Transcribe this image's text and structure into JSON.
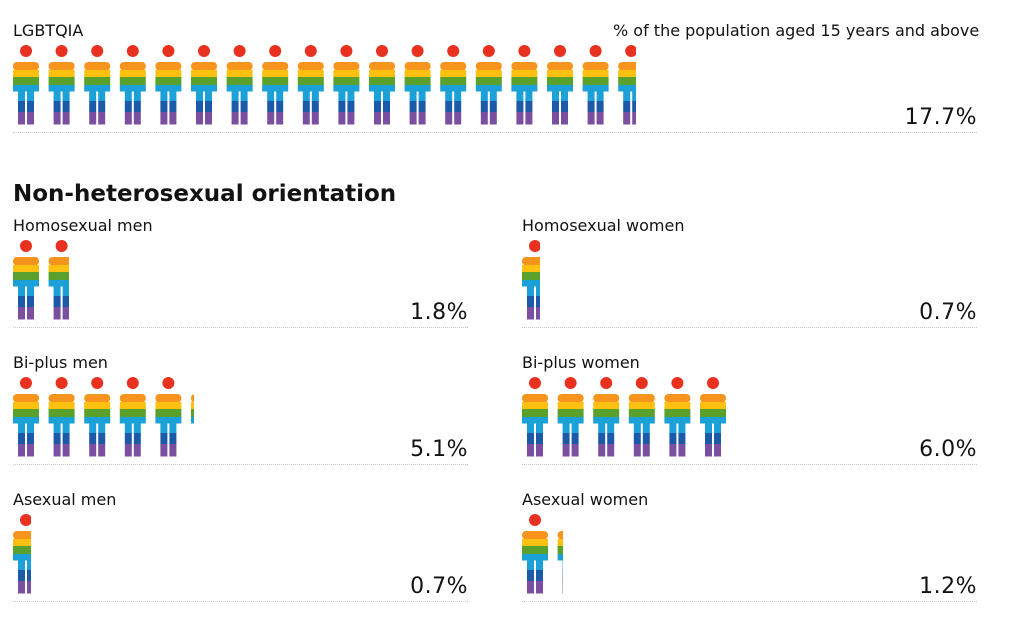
{
  "subtitle": "% of the population aged 15 years and above",
  "section_title": "Non-heterosexual orientation",
  "stripe_colors": [
    "#f7941d",
    "#fcc010",
    "#5aa02c",
    "#1ba0d8",
    "#1c5aa8",
    "#7b4fa0"
  ],
  "head_color": "#e8311f",
  "chart_data": {
    "type": "pictogram",
    "title": "% of the population aged 15 years and above",
    "unit": "%",
    "value_per_icon": 1,
    "groups": [
      {
        "id": "lgbtqia",
        "label": "LGBTQIA",
        "value": 17.7,
        "display": "17.7%"
      },
      {
        "id": "homosexual_men",
        "section": "Non-heterosexual orientation",
        "label": "Homosexual men",
        "value": 1.8,
        "display": "1.8%"
      },
      {
        "id": "homosexual_women",
        "section": "Non-heterosexual orientation",
        "label": "Homosexual women",
        "value": 0.7,
        "display": "0.7%"
      },
      {
        "id": "bi_plus_men",
        "section": "Non-heterosexual orientation",
        "label": "Bi-plus men",
        "value": 5.1,
        "display": "5.1%"
      },
      {
        "id": "bi_plus_women",
        "section": "Non-heterosexual orientation",
        "label": "Bi-plus women",
        "value": 6.0,
        "display": "6.0%"
      },
      {
        "id": "asexual_men",
        "section": "Non-heterosexual orientation",
        "label": "Asexual men",
        "value": 0.7,
        "display": "0.7%"
      },
      {
        "id": "asexual_women",
        "section": "Non-heterosexual orientation",
        "label": "Asexual women",
        "value": 1.2,
        "display": "1.2%"
      }
    ]
  }
}
